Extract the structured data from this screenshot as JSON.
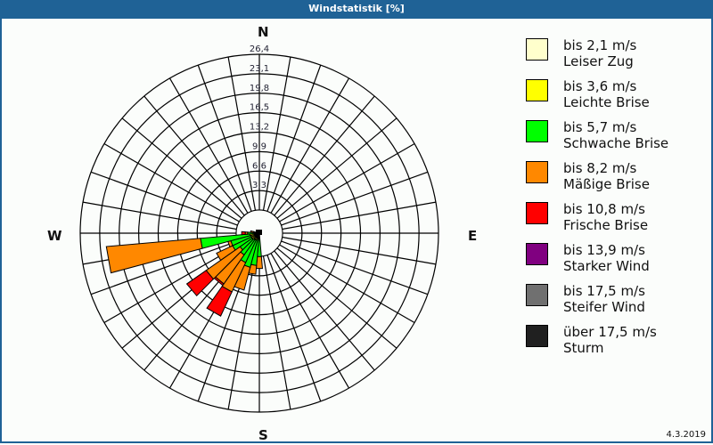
{
  "title": "Windstatistik [%]",
  "date": "4.3.2019",
  "compass": {
    "n": "N",
    "e": "E",
    "s": "S",
    "w": "W"
  },
  "legend": [
    {
      "range": "bis 2,1 m/s",
      "name": "Leiser Zug",
      "color": "#ffffcc"
    },
    {
      "range": "bis 3,6 m/s",
      "name": "Leichte Brise",
      "color": "#ffff00"
    },
    {
      "range": "bis 5,7 m/s",
      "name": "Schwache Brise",
      "color": "#00ff00"
    },
    {
      "range": "bis 8,2 m/s",
      "name": "Mäßige Brise",
      "color": "#ff8800"
    },
    {
      "range": "bis 10,8 m/s",
      "name": "Frische Brise",
      "color": "#ff0000"
    },
    {
      "range": "bis 13,9 m/s",
      "name": "Starker Wind",
      "color": "#800080"
    },
    {
      "range": "bis 17,5 m/s",
      "name": "Steifer Wind",
      "color": "#707070"
    },
    {
      "range": "über 17,5 m/s",
      "name": "Sturm",
      "color": "#202020"
    }
  ],
  "chart_data": {
    "type": "wind-rose",
    "title": "Windstatistik [%]",
    "radial_ticks": [
      "3,3",
      "6,6",
      "9,9",
      "13,2",
      "16,5",
      "19,8",
      "23,1",
      "26,4"
    ],
    "rmax": 26.4,
    "sector_width_deg": 10,
    "series_names": [
      "Leiser Zug",
      "Leichte Brise",
      "Schwache Brise",
      "Mäßige Brise",
      "Frische Brise",
      "Starker Wind",
      "Steifer Wind",
      "Sturm"
    ],
    "sectors": [
      {
        "dir": 180,
        "cumulative": [
          0.3,
          0.8,
          4.0,
          6.0
        ]
      },
      {
        "dir": 190,
        "cumulative": [
          0.3,
          1.0,
          5.5,
          7.0
        ]
      },
      {
        "dir": 200,
        "cumulative": [
          0.3,
          1.2,
          6.0,
          10.0,
          10.0
        ]
      },
      {
        "dir": 210,
        "cumulative": [
          0.3,
          1.3,
          5.5,
          11.0,
          15.5
        ]
      },
      {
        "dir": 220,
        "cumulative": [
          0.3,
          1.3,
          4.5,
          10.5,
          10.8
        ]
      },
      {
        "dir": 230,
        "cumulative": [
          0.3,
          1.5,
          4.0,
          11.0,
          15.0
        ]
      },
      {
        "dir": 240,
        "cumulative": [
          0.3,
          1.5,
          5.0,
          8.0
        ]
      },
      {
        "dir": 250,
        "cumulative": [
          0.3,
          1.5,
          5.0,
          5.5
        ]
      },
      {
        "dir": 260,
        "cumulative": [
          0.3,
          1.6,
          10.0,
          26.0
        ]
      },
      {
        "dir": 270,
        "cumulative": [
          0.3,
          0.8,
          2.0,
          2.4,
          3.0
        ]
      },
      {
        "dir": 280,
        "cumulative": [
          0.3,
          0.5,
          1.0,
          1.5
        ]
      }
    ]
  }
}
